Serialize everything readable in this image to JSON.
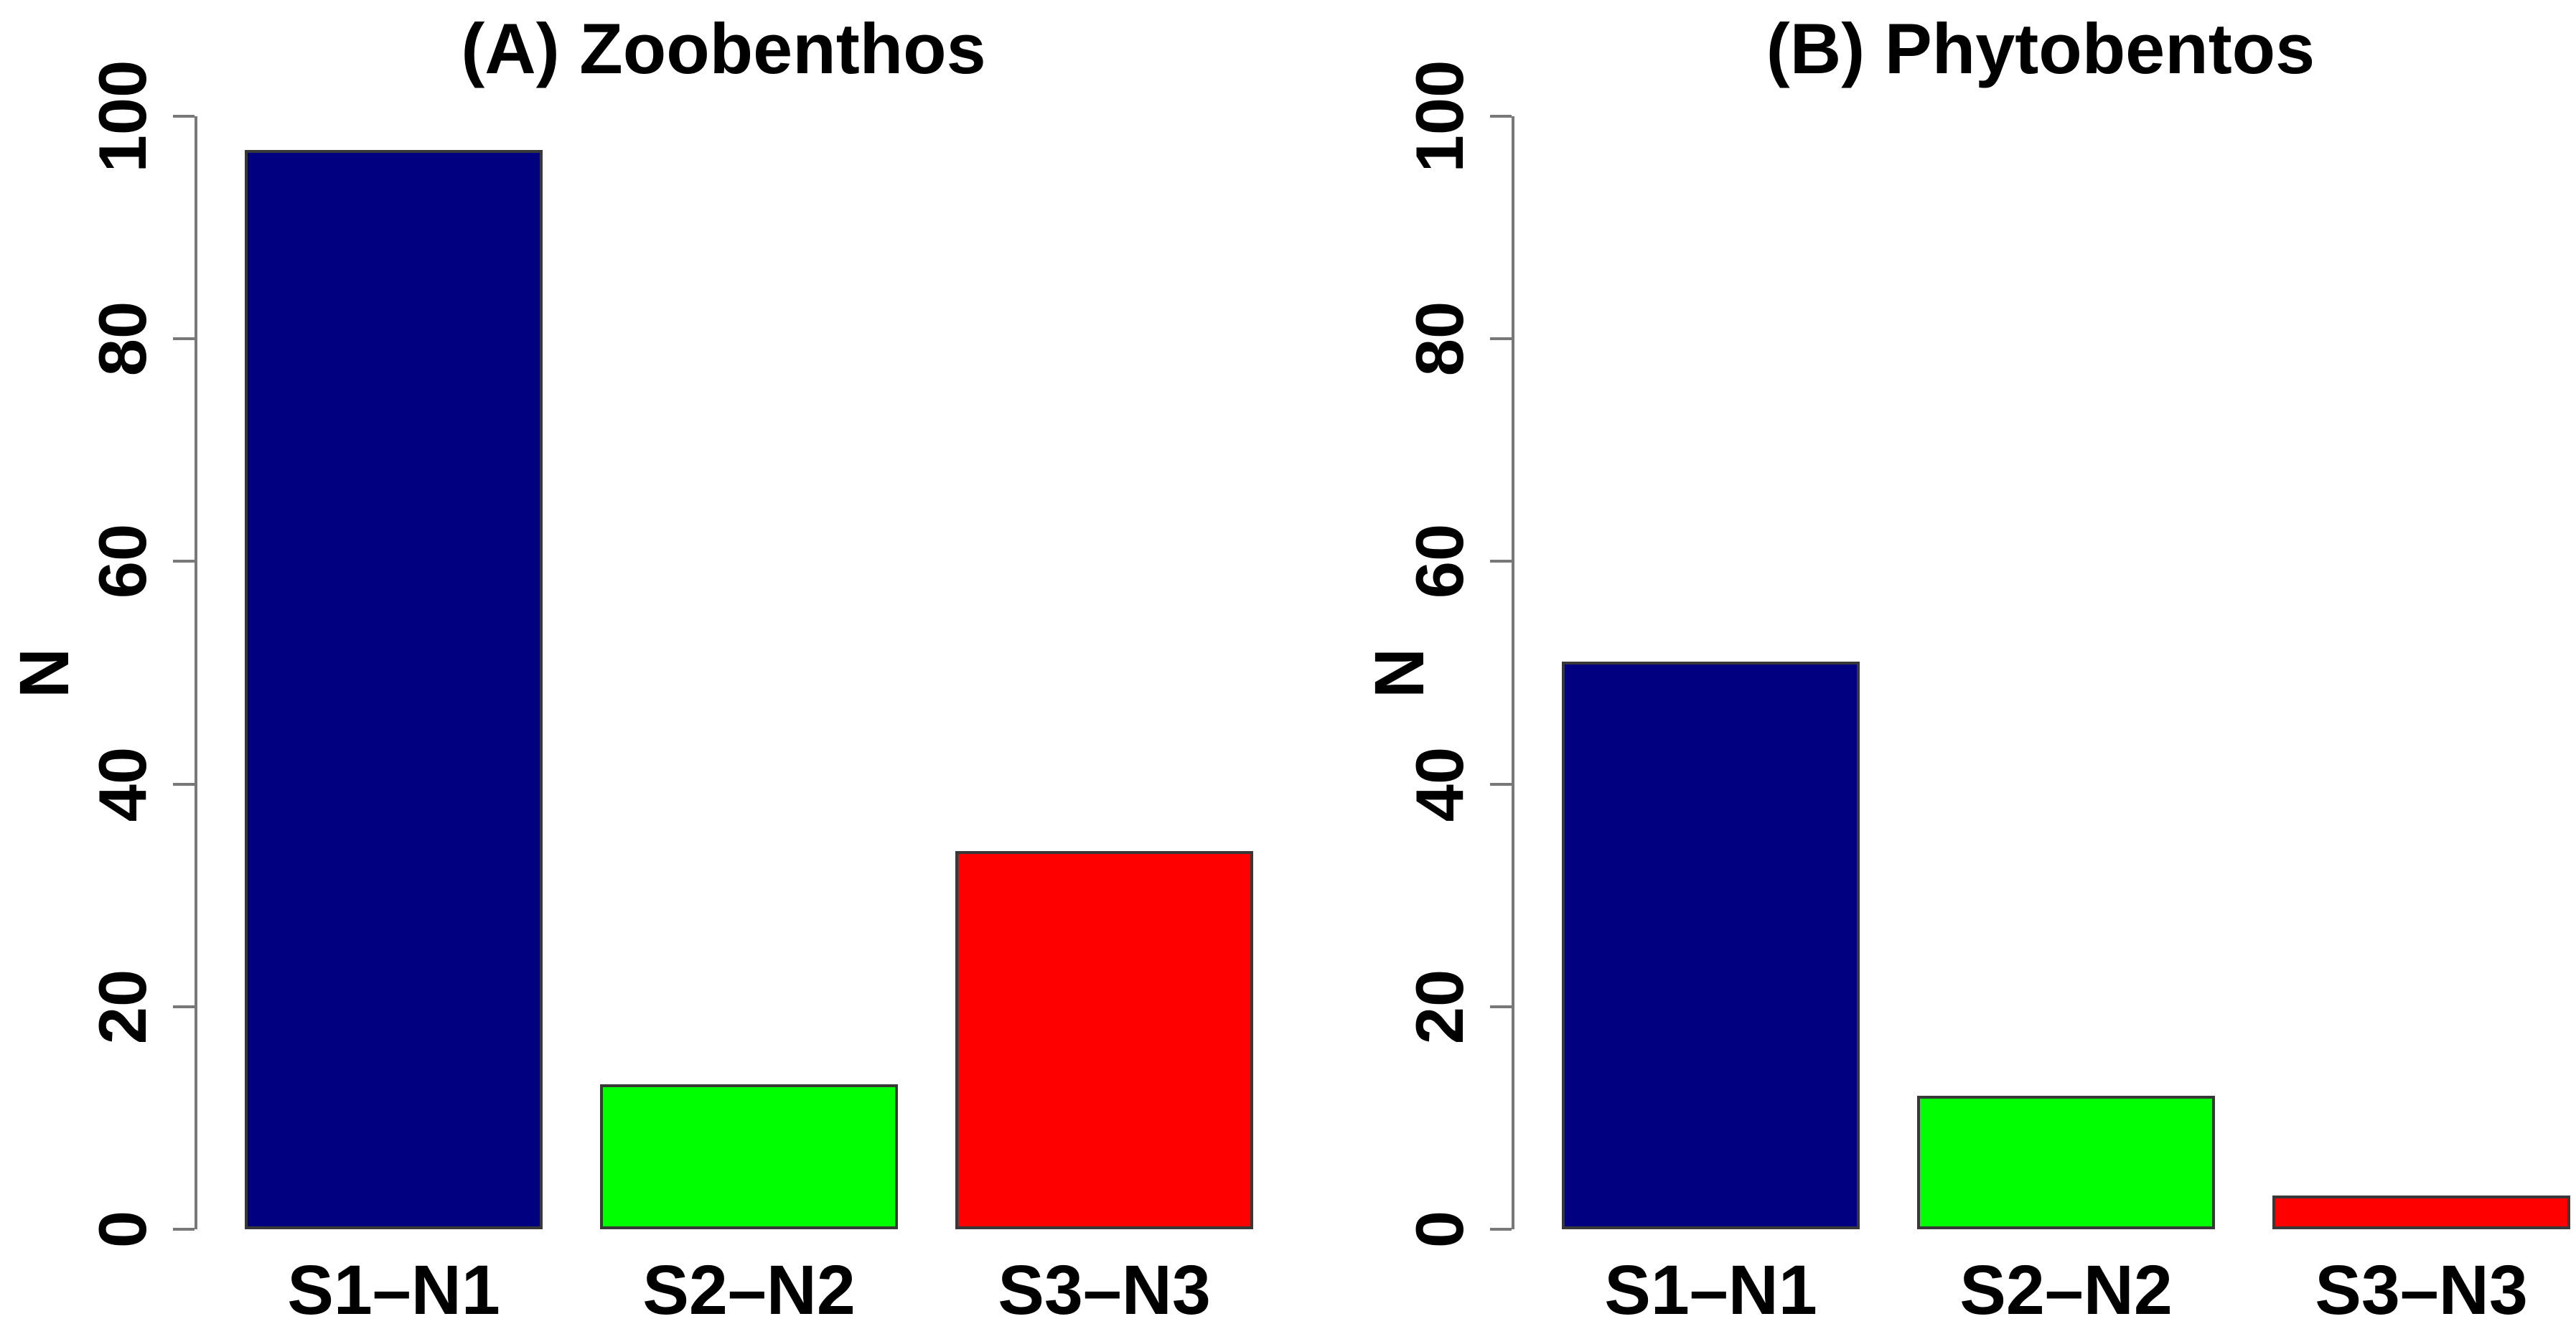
{
  "figure": {
    "background": "#ffffff",
    "text_color": "#000000",
    "axis_color": "#787878"
  },
  "chart_data": [
    {
      "type": "bar",
      "panel_label": "A",
      "title": "(A) Zoobenthos",
      "categories": [
        "S1–N1",
        "S2–N2",
        "S3–N3"
      ],
      "values": [
        97,
        13,
        34
      ],
      "bar_colors": [
        "#000080",
        "#00ff00",
        "#ff0000"
      ],
      "xlabel": "",
      "ylabel": "N",
      "ylim": [
        0,
        100
      ],
      "yticks": [
        0,
        20,
        40,
        60,
        80,
        100
      ],
      "grid": false,
      "legend_position": "none"
    },
    {
      "type": "bar",
      "panel_label": "B",
      "title": "(B) Phytobentos",
      "categories": [
        "S1–N1",
        "S2–N2",
        "S3–N3"
      ],
      "values": [
        51,
        12,
        3
      ],
      "bar_colors": [
        "#000080",
        "#00ff00",
        "#ff0000"
      ],
      "xlabel": "",
      "ylabel": "N",
      "ylim": [
        0,
        100
      ],
      "yticks": [
        0,
        20,
        40,
        60,
        80,
        100
      ],
      "grid": false,
      "legend_position": "none"
    }
  ]
}
